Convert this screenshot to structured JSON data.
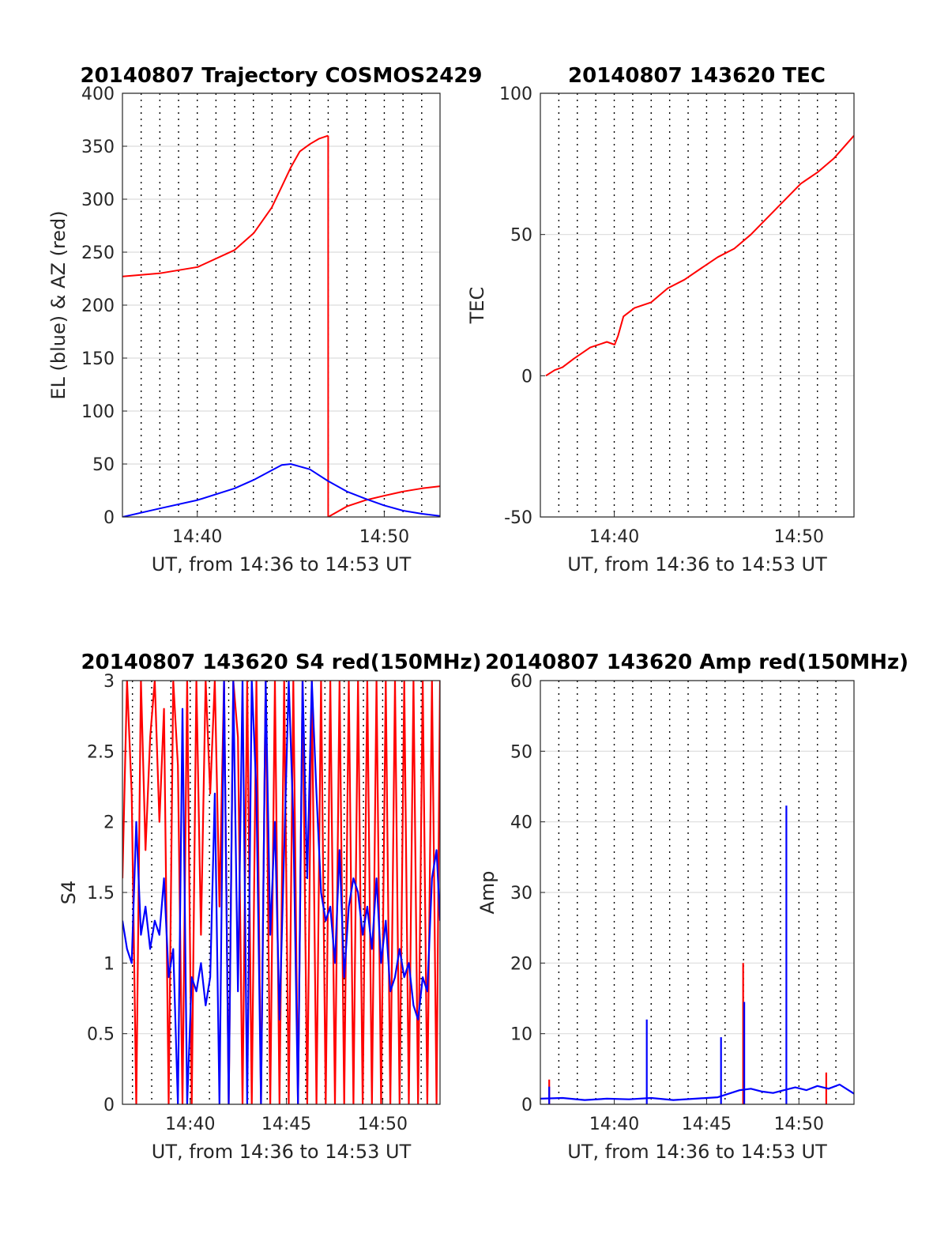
{
  "figure": {
    "colors": {
      "red": "#ff0000",
      "blue": "#0000ff",
      "grid": "#dcdcdc",
      "dotted": "#000000"
    }
  },
  "chart_data": [
    {
      "type": "line",
      "title": "20140807 Trajectory COSMOS2429",
      "xlabel": "UT, from 14:36 to 14:53 UT",
      "ylabel": "EL (blue) & AZ (red)",
      "xlim": [
        14.6,
        14.883
      ],
      "ylim": [
        0,
        400
      ],
      "yticks": [
        "0",
        "50",
        "100",
        "150",
        "200",
        "250",
        "300",
        "350",
        "400"
      ],
      "xticks": [
        {
          "x": 14.6667,
          "label": "14:40"
        },
        {
          "x": 14.8333,
          "label": "14:50"
        }
      ],
      "dotted_verticals_minutes": [
        36,
        37,
        38,
        39,
        40,
        41,
        42,
        43,
        44,
        45,
        46,
        47,
        48,
        49,
        50,
        51,
        52,
        53
      ],
      "series": [
        {
          "color": "#ff0000",
          "segments": [
            {
              "x": [
                14.6,
                14.633,
                14.667,
                14.7,
                14.717,
                14.733,
                14.742,
                14.75,
                14.758,
                14.767,
                14.775,
                14.7833
              ],
              "y": [
                227,
                230,
                236,
                252,
                268,
                292,
                312,
                330,
                345,
                352,
                357,
                360
              ]
            },
            {
              "x": [
                14.7833,
                14.7833
              ],
              "y": [
                360,
                0
              ]
            },
            {
              "x": [
                14.7833,
                14.8,
                14.817,
                14.833,
                14.85,
                14.867,
                14.883
              ],
              "y": [
                0,
                10,
                16,
                20,
                24,
                27,
                29
              ]
            }
          ]
        },
        {
          "color": "#0000ff",
          "segments": [
            {
              "x": [
                14.6,
                14.633,
                14.667,
                14.7,
                14.717,
                14.733,
                14.742,
                14.75,
                14.767,
                14.783,
                14.8,
                14.817,
                14.833,
                14.85,
                14.867,
                14.883
              ],
              "y": [
                0,
                8,
                16,
                27,
                35,
                44,
                49,
                50,
                45,
                34,
                24,
                17,
                11,
                6,
                3,
                1
              ]
            }
          ]
        }
      ]
    },
    {
      "type": "line",
      "title": "20140807 143620 TEC",
      "xlabel": "UT, from 14:36 to 14:53 UT",
      "ylabel": "TEC",
      "xlim": [
        14.6,
        14.883
      ],
      "ylim": [
        -50,
        100
      ],
      "yticks": [
        "-50",
        "0",
        "50",
        "100"
      ],
      "xticks": [
        {
          "x": 14.6667,
          "label": "14:40"
        },
        {
          "x": 14.8333,
          "label": "14:50"
        }
      ],
      "dotted_verticals_minutes": [
        36,
        37,
        38,
        39,
        40,
        41,
        42,
        43,
        44,
        45,
        46,
        47,
        48,
        49,
        50,
        51,
        52,
        53
      ],
      "series": [
        {
          "color": "#ff0000",
          "segments": [
            {
              "x": [
                14.605,
                14.613,
                14.62,
                14.63,
                14.645,
                14.66,
                14.667,
                14.67,
                14.675,
                14.685,
                14.7,
                14.715,
                14.73,
                14.745,
                14.76,
                14.775,
                14.79,
                14.805,
                14.82,
                14.835,
                14.85,
                14.865,
                14.883
              ],
              "y": [
                0,
                2,
                3,
                6,
                10,
                12,
                11,
                14,
                21,
                24,
                26,
                31,
                34,
                38,
                42,
                45,
                50,
                56,
                62,
                68,
                72,
                77,
                85
              ]
            }
          ]
        }
      ]
    },
    {
      "type": "line",
      "title": "20140807 143620 S4 red(150MHz)",
      "xlabel": "UT, from 14:36 to 14:53 UT",
      "ylabel": "S4",
      "xlim": [
        14.608,
        14.883
      ],
      "ylim": [
        0,
        3
      ],
      "yticks": [
        "0",
        "0.5",
        "1",
        "1.5",
        "2",
        "2.5",
        "3"
      ],
      "xticks": [
        {
          "x": 14.6667,
          "label": "14:40"
        },
        {
          "x": 14.75,
          "label": "14:45"
        },
        {
          "x": 14.8333,
          "label": "14:50"
        }
      ],
      "dotted_verticals_minutes": [
        37,
        38,
        39,
        40,
        41,
        42,
        43,
        44,
        45,
        46,
        47,
        48,
        49,
        50,
        51,
        52,
        53
      ],
      "series": [
        {
          "color": "#ff0000",
          "segments": [
            {
              "x": [
                14.608,
                14.612,
                14.616,
                14.62,
                14.624,
                14.628,
                14.632,
                14.636,
                14.64,
                14.644,
                14.648,
                14.652,
                14.656,
                14.66,
                14.664,
                14.668,
                14.672,
                14.676,
                14.68,
                14.684,
                14.688,
                14.692,
                14.696,
                14.7,
                14.704,
                14.708,
                14.712,
                14.716,
                14.72,
                14.724,
                14.728,
                14.732,
                14.736,
                14.74,
                14.744,
                14.748,
                14.752,
                14.756,
                14.76,
                14.764,
                14.768,
                14.772,
                14.776,
                14.78,
                14.784,
                14.788,
                14.792,
                14.796,
                14.8,
                14.804,
                14.808,
                14.812,
                14.816,
                14.82,
                14.824,
                14.828,
                14.832,
                14.836,
                14.84,
                14.844,
                14.848,
                14.852,
                14.856,
                14.86,
                14.864,
                14.868,
                14.872,
                14.876,
                14.88,
                14.883
              ],
              "y": [
                1.6,
                3,
                2.2,
                0,
                3,
                1.8,
                2.6,
                3,
                2.0,
                2.8,
                0,
                3,
                2.4,
                0,
                3,
                0,
                3,
                1.2,
                3,
                2.2,
                3,
                1.4,
                3,
                0,
                3,
                2.6,
                0,
                3,
                0,
                3,
                0,
                3,
                0,
                3,
                0,
                3,
                0,
                3,
                0,
                3,
                0,
                3,
                0,
                3,
                0,
                3,
                0,
                3,
                0,
                3,
                0,
                3,
                0,
                3,
                0,
                3,
                0,
                3,
                0,
                3,
                0,
                3,
                0,
                3,
                0,
                3,
                0,
                3,
                0,
                3
              ]
            }
          ]
        },
        {
          "color": "#0000ff",
          "segments": [
            {
              "x": [
                14.608,
                14.612,
                14.616,
                14.62,
                14.624,
                14.628,
                14.632,
                14.636,
                14.64,
                14.644,
                14.648,
                14.652,
                14.656,
                14.66,
                14.664,
                14.668,
                14.672,
                14.676,
                14.68,
                14.684,
                14.688,
                14.692,
                14.696,
                14.7,
                14.704,
                14.708,
                14.712,
                14.716,
                14.72,
                14.724,
                14.728,
                14.732,
                14.736,
                14.74,
                14.744,
                14.748,
                14.752,
                14.756,
                14.76,
                14.764,
                14.768,
                14.772,
                14.776,
                14.78,
                14.784,
                14.788,
                14.792,
                14.796,
                14.8,
                14.804,
                14.808,
                14.812,
                14.816,
                14.82,
                14.824,
                14.828,
                14.832,
                14.836,
                14.84,
                14.844,
                14.848,
                14.852,
                14.856,
                14.86,
                14.864,
                14.868,
                14.872,
                14.876,
                14.88,
                14.883
              ],
              "y": [
                1.3,
                1.1,
                1.0,
                2.0,
                1.2,
                1.4,
                1.1,
                1.3,
                1.2,
                1.6,
                0.9,
                1.1,
                0,
                2.8,
                0,
                0.9,
                0.8,
                1.0,
                0.7,
                0.9,
                2.2,
                0,
                3,
                0,
                3,
                0.8,
                3,
                0,
                3,
                2.2,
                0,
                3,
                1.2,
                2.0,
                0.6,
                1.8,
                3,
                2.0,
                0,
                3,
                1.6,
                3,
                2.2,
                1.5,
                1.3,
                1.4,
                1.0,
                1.8,
                0.9,
                1.4,
                1.6,
                1.5,
                1.2,
                1.4,
                1.1,
                1.6,
                1.0,
                1.3,
                0.8,
                0.9,
                1.1,
                0.9,
                1.0,
                0.7,
                0.6,
                0.9,
                0.8,
                1.6,
                1.8,
                1.3
              ]
            }
          ]
        }
      ]
    },
    {
      "type": "line",
      "title": "20140807 143620 Amp red(150MHz)",
      "xlabel": "UT, from 14:36 to 14:53 UT",
      "ylabel": "Amp",
      "xlim": [
        14.6,
        14.883
      ],
      "ylim": [
        0,
        60
      ],
      "yticks": [
        "0",
        "10",
        "20",
        "30",
        "40",
        "50",
        "60"
      ],
      "xticks": [
        {
          "x": 14.6667,
          "label": "14:40"
        },
        {
          "x": 14.75,
          "label": "14:45"
        },
        {
          "x": 14.8333,
          "label": "14:50"
        }
      ],
      "dotted_verticals_minutes": [
        37,
        38,
        39,
        40,
        41,
        42,
        43,
        44,
        45,
        46,
        47,
        48,
        49,
        50,
        51,
        52,
        53
      ],
      "series": [
        {
          "color": "#ff0000",
          "segments": [
            {
              "x": [
                14.608,
                14.608
              ],
              "y": [
                0,
                3.5
              ]
            },
            {
              "x": [
                14.783,
                14.783
              ],
              "y": [
                0,
                20
              ]
            },
            {
              "x": [
                14.858,
                14.858
              ],
              "y": [
                0,
                4.5
              ]
            }
          ]
        },
        {
          "color": "#0000ff",
          "segments": [
            {
              "x": [
                14.6,
                14.62,
                14.64,
                14.66,
                14.68,
                14.7,
                14.72,
                14.74,
                14.76,
                14.77,
                14.78,
                14.79,
                14.8,
                14.81,
                14.82,
                14.83,
                14.84,
                14.85,
                14.86,
                14.87,
                14.883
              ],
              "y": [
                0.8,
                0.9,
                0.6,
                0.8,
                0.7,
                0.9,
                0.6,
                0.8,
                1.0,
                1.5,
                2.0,
                2.2,
                1.8,
                1.6,
                2.0,
                2.4,
                2.0,
                2.6,
                2.2,
                2.8,
                1.5
              ]
            },
            {
              "x": [
                14.608,
                14.608
              ],
              "y": [
                0,
                2.5
              ]
            },
            {
              "x": [
                14.696,
                14.696
              ],
              "y": [
                0,
                12
              ]
            },
            {
              "x": [
                14.763,
                14.763
              ],
              "y": [
                0,
                9.5
              ]
            },
            {
              "x": [
                14.784,
                14.784
              ],
              "y": [
                0,
                14.5
              ]
            },
            {
              "x": [
                14.822,
                14.822
              ],
              "y": [
                0,
                42.3
              ]
            }
          ]
        }
      ]
    }
  ]
}
